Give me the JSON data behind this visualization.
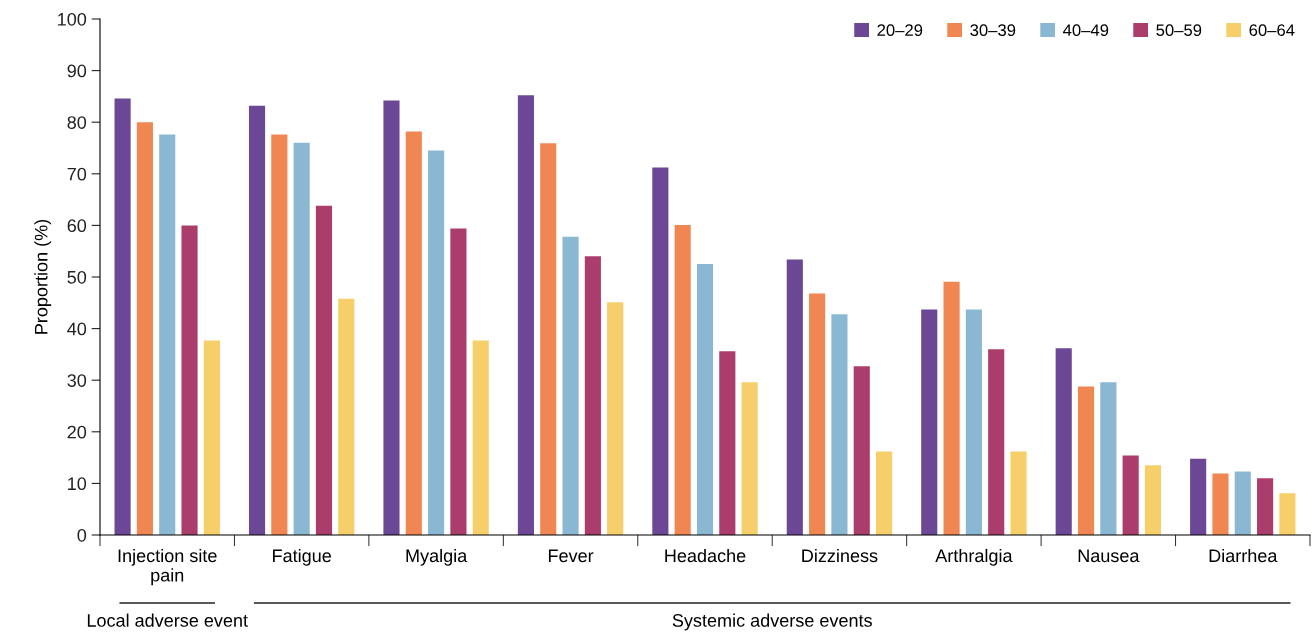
{
  "chart_data": {
    "type": "bar",
    "ylabel": "Proportion (%)",
    "categories": [
      "Injection site\npain",
      "Fatigue",
      "Myalgia",
      "Fever",
      "Headache",
      "Dizziness",
      "Arthralgia",
      "Nausea",
      "Diarrhea"
    ],
    "series": [
      {
        "name": "20–29",
        "color": "#6c4796",
        "values": [
          84.6,
          83.2,
          84.2,
          85.2,
          71.2,
          53.4,
          43.7,
          36.2,
          14.8
        ]
      },
      {
        "name": "30–39",
        "color": "#f08752",
        "values": [
          80,
          77.6,
          78.2,
          75.9,
          60.1,
          46.8,
          49.1,
          28.8,
          11.9
        ]
      },
      {
        "name": "40–49",
        "color": "#8ab8d3",
        "values": [
          77.6,
          76,
          74.5,
          57.8,
          52.5,
          42.8,
          43.7,
          29.6,
          12.3
        ]
      },
      {
        "name": "50–59",
        "color": "#ab3d6c",
        "values": [
          60,
          63.8,
          59.4,
          54,
          35.6,
          32.7,
          36,
          15.4,
          11
        ]
      },
      {
        "name": "60–64",
        "color": "#f6cf6a",
        "values": [
          37.7,
          45.8,
          37.7,
          45.1,
          29.6,
          16.2,
          16.2,
          13.5,
          8.1
        ]
      }
    ],
    "ylim": [
      0,
      100
    ],
    "yticks": [
      0,
      10,
      20,
      30,
      40,
      50,
      60,
      70,
      80,
      90,
      100
    ],
    "legend": "top right",
    "grid": false,
    "annotations": [
      "Local adverse event",
      "Systemic adverse events"
    ]
  }
}
